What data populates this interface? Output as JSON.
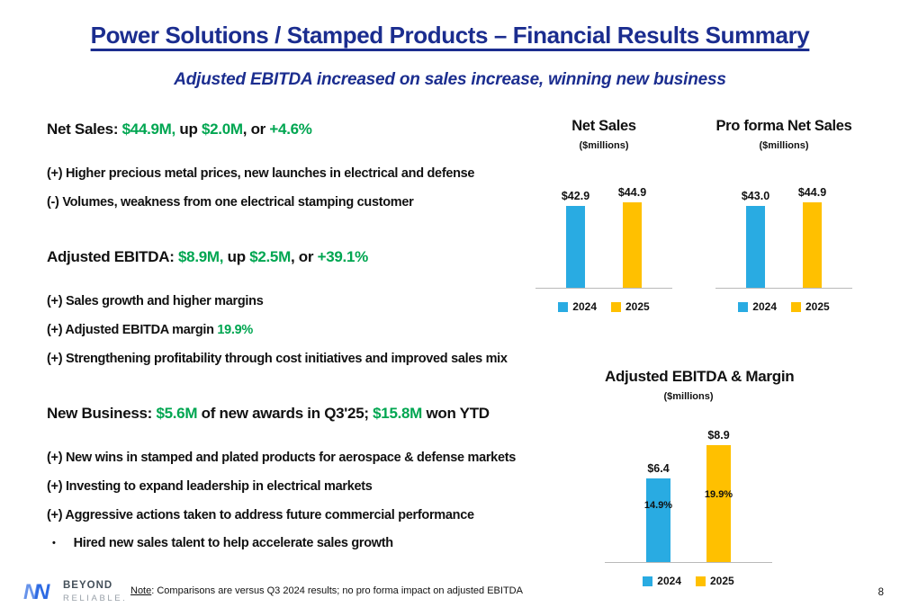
{
  "slide": {
    "title": "Power Solutions / Stamped Products – Financial Results Summary",
    "subtitle": "Adjusted EBITDA increased on sales increase, winning new business",
    "page_number": "8",
    "footnote": {
      "label": "Note",
      "text": ": Comparisons are versus Q3 2024 results; no pro forma impact on adjusted EBITDA"
    }
  },
  "logo": {
    "line1": "BEYOND",
    "line2": "RELIABLE."
  },
  "colors": {
    "navy": "#1b2d8f",
    "green": "#00a651",
    "series": [
      "#29abe2",
      "#ffc000"
    ],
    "logo_blue": "#2d6ae3"
  },
  "left_content": {
    "lines": [
      {
        "kind": "headline",
        "segments": [
          {
            "text": "Net Sales: "
          },
          {
            "text": "$44.9M,",
            "color": "green"
          },
          {
            "text": " up "
          },
          {
            "text": "$2.0M",
            "color": "green"
          },
          {
            "text": ", or "
          },
          {
            "text": "+4.6%",
            "color": "green"
          }
        ]
      },
      {
        "kind": "lead-bullet",
        "segments": [
          {
            "text": "(+) Higher precious metal prices, new launches in electrical and defense"
          }
        ]
      },
      {
        "kind": "bullet",
        "segments": [
          {
            "text": "(-) Volumes, weakness from one electrical stamping customer"
          }
        ]
      },
      {
        "kind": "headline",
        "segments": [
          {
            "text": "Adjusted EBITDA: "
          },
          {
            "text": "$8.9M,",
            "color": "green"
          },
          {
            "text": "  up "
          },
          {
            "text": "$2.5M",
            "color": "green"
          },
          {
            "text": ", or "
          },
          {
            "text": "+39.1%",
            "color": "green"
          }
        ]
      },
      {
        "kind": "lead-bullet",
        "segments": [
          {
            "text": "(+) Sales growth and higher margins"
          }
        ]
      },
      {
        "kind": "bullet",
        "segments": [
          {
            "text": "(+) Adjusted EBITDA margin "
          },
          {
            "text": "19.9%",
            "color": "green"
          }
        ]
      },
      {
        "kind": "bullet",
        "segments": [
          {
            "text": "(+) Strengthening profitability through cost initiatives and improved sales mix"
          }
        ]
      },
      {
        "kind": "headline",
        "segments": [
          {
            "text": "New Business:  "
          },
          {
            "text": "$5.6M",
            "color": "green"
          },
          {
            "text": " of new awards in Q3'25; "
          },
          {
            "text": "$15.8M",
            "color": "green"
          },
          {
            "text": " won YTD"
          }
        ]
      },
      {
        "kind": "lead-bullet",
        "segments": [
          {
            "text": "(+) New wins in stamped and plated products for aerospace & defense markets"
          }
        ]
      },
      {
        "kind": "bullet",
        "segments": [
          {
            "text": "(+) Investing to expand leadership in electrical markets"
          }
        ]
      },
      {
        "kind": "bullet",
        "segments": [
          {
            "text": "(+) Aggressive actions taken to address future commercial performance"
          }
        ]
      },
      {
        "kind": "dot-bullet",
        "marker": "•",
        "segments": [
          {
            "text": "Hired new sales talent to help accelerate sales growth"
          }
        ]
      }
    ]
  },
  "chart_data": [
    {
      "type": "bar",
      "title": "Net Sales",
      "subtitle": "($millions)",
      "categories": [
        "2024",
        "2025"
      ],
      "values": [
        42.9,
        44.9
      ],
      "value_labels": [
        "$42.9",
        "$44.9"
      ],
      "legend": [
        "2024",
        "2025"
      ],
      "xlabel": "",
      "ylabel": "",
      "ylim": [
        0,
        50
      ],
      "legend_position": "bottom"
    },
    {
      "type": "bar",
      "title": "Pro forma Net Sales",
      "subtitle": "($millions)",
      "categories": [
        "2024",
        "2025"
      ],
      "values": [
        43.0,
        44.9
      ],
      "value_labels": [
        "$43.0",
        "$44.9"
      ],
      "legend": [
        "2024",
        "2025"
      ],
      "xlabel": "",
      "ylabel": "",
      "ylim": [
        0,
        50
      ],
      "legend_position": "bottom"
    },
    {
      "type": "bar",
      "title": "Adjusted EBITDA & Margin",
      "subtitle": "($millions)",
      "categories": [
        "2024",
        "2025"
      ],
      "values": [
        6.4,
        8.9
      ],
      "value_labels": [
        "$6.4",
        "$8.9"
      ],
      "inner_labels": [
        "14.9%",
        "19.9%"
      ],
      "legend": [
        "2024",
        "2025"
      ],
      "xlabel": "",
      "ylabel": "",
      "ylim": [
        0,
        10
      ],
      "legend_position": "bottom"
    }
  ]
}
